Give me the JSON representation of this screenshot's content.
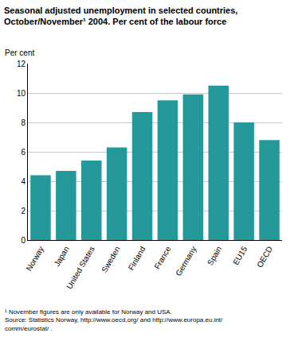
{
  "chart_data": {
    "type": "bar",
    "title": "Seasonal adjusted unemployment in selected countries,\nOctober/November¹ 2004. Per cent of the labour force",
    "y_label": "Per cent",
    "categories": [
      "Norway",
      "Japan",
      "United States",
      "Sweden",
      "Finland",
      "France",
      "Germany",
      "Spain",
      "EU15",
      "OECD"
    ],
    "values": [
      4.4,
      4.7,
      5.4,
      6.3,
      8.7,
      9.5,
      9.9,
      10.5,
      8.0,
      6.8
    ],
    "color": "#25999a",
    "ylim": [
      0,
      12
    ],
    "yticks": [
      0,
      2,
      4,
      6,
      8,
      10,
      12
    ],
    "grid": true,
    "notes": [
      "¹ November figures are only available for Norway and USA.",
      "Source: Statistics Norway, http://www.oecd.org/ and http://www.europa.eu.int/",
      "comm/eurostat/ ."
    ]
  }
}
